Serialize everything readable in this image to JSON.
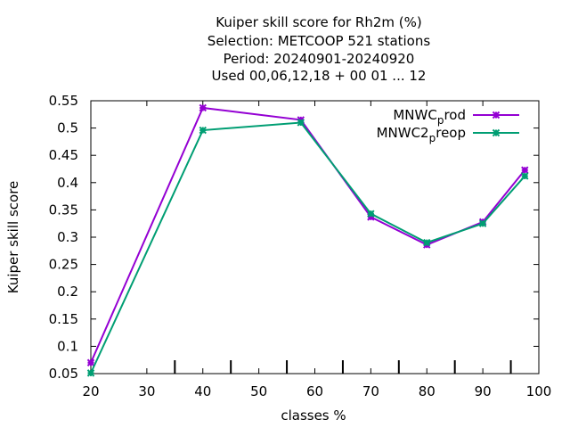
{
  "chart_data": {
    "type": "line",
    "title_lines": [
      "Kuiper skill score  for Rh2m (%)",
      "Selection: METCOOP    521 stations",
      "Period: 20240901-20240920",
      "Used  00,06,12,18 + 00 01 ... 12"
    ],
    "xlabel": "classes %",
    "ylabel": "Kuiper skill score",
    "xlim": [
      20,
      100
    ],
    "ylim": [
      0.05,
      0.55
    ],
    "x_ticks": [
      20,
      30,
      40,
      50,
      60,
      70,
      80,
      90,
      100
    ],
    "x_tick_labels": [
      "20",
      "30",
      "40",
      "50",
      "60",
      "70",
      "80",
      "90",
      "100"
    ],
    "y_ticks": [
      0.05,
      0.1,
      0.15,
      0.2,
      0.25,
      0.3,
      0.35,
      0.4,
      0.45,
      0.5,
      0.55
    ],
    "y_tick_labels": [
      "0.05",
      "0.1",
      "0.15",
      "0.2",
      "0.25",
      "0.3",
      "0.35",
      "0.4",
      "0.45",
      "0.5",
      "0.55"
    ],
    "class_marks": [
      35,
      45,
      55,
      65,
      75,
      85,
      95
    ],
    "grid": false,
    "legend_position": "top-right",
    "series": [
      {
        "name": "MNWC_prod",
        "legend_main": "MNWC",
        "legend_sub": "p",
        "legend_rest": "rod",
        "color": "#9400d3",
        "x": [
          20,
          40,
          57.5,
          70,
          80,
          90,
          97.5
        ],
        "y": [
          0.07,
          0.537,
          0.515,
          0.337,
          0.286,
          0.328,
          0.423
        ]
      },
      {
        "name": "MNWC2_preop",
        "legend_main": "MNWC2",
        "legend_sub": "p",
        "legend_rest": "reop",
        "color": "#009e73",
        "x": [
          20,
          40,
          57.5,
          70,
          80,
          90,
          97.5
        ],
        "y": [
          0.051,
          0.496,
          0.51,
          0.343,
          0.29,
          0.325,
          0.412
        ]
      }
    ]
  }
}
